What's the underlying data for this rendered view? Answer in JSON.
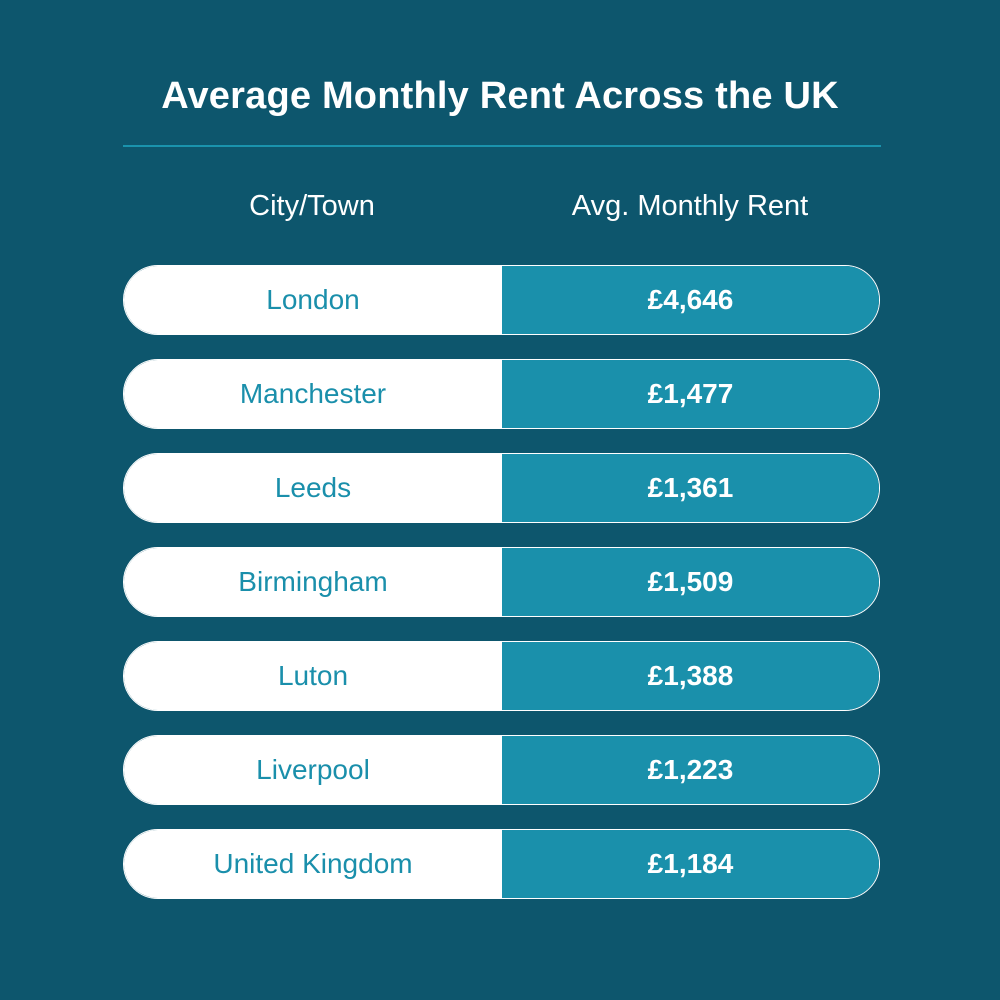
{
  "header": {
    "title": "Average Monthly Rent Across the UK"
  },
  "columns": {
    "city": "City/Town",
    "rent": "Avg. Monthly Rent"
  },
  "colors": {
    "background": "#0d566d",
    "accent": "#1a90ab",
    "row_left": "#ffffff"
  },
  "rows": [
    {
      "city": "London",
      "rent": "£4,646"
    },
    {
      "city": "Manchester",
      "rent": "£1,477"
    },
    {
      "city": "Leeds",
      "rent": "£1,361"
    },
    {
      "city": "Birmingham",
      "rent": "£1,509"
    },
    {
      "city": "Luton",
      "rent": "£1,388"
    },
    {
      "city": "Liverpool",
      "rent": "£1,223"
    },
    {
      "city": "United Kingdom",
      "rent": "£1,184"
    }
  ],
  "chart_data": {
    "type": "table",
    "title": "Average Monthly Rent Across the UK",
    "columns": [
      "City/Town",
      "Avg. Monthly Rent"
    ],
    "categories": [
      "London",
      "Manchester",
      "Leeds",
      "Birmingham",
      "Luton",
      "Liverpool",
      "United Kingdom"
    ],
    "values": [
      4646,
      1477,
      1361,
      1509,
      1388,
      1223,
      1184
    ],
    "unit": "£"
  }
}
